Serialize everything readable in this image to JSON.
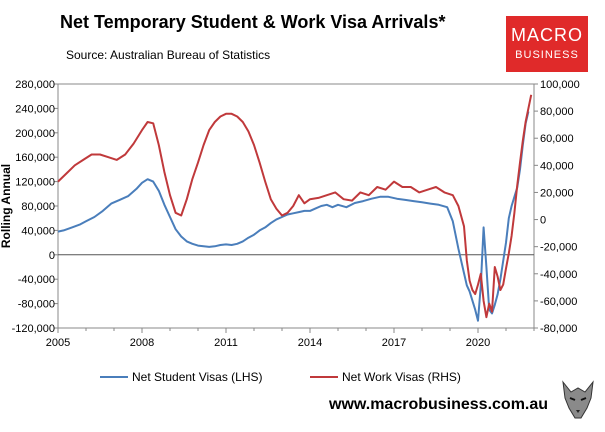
{
  "header": {
    "title": "Net Temporary Student & Work Visa Arrivals*",
    "source": "Source: Australian Bureau of Statistics"
  },
  "logo": {
    "line1": "MACRO",
    "line2": "BUSINESS"
  },
  "footer": {
    "website": "www.macrobusiness.com.au"
  },
  "colors": {
    "student": "#4a7ebb",
    "work": "#c0393b",
    "logo_bg": "#e02a2a"
  },
  "chart_data": {
    "type": "line",
    "title": "Net Temporary Student & Work Visa Arrivals*",
    "ylabel": "Rolling Annual",
    "x_tick_labels": [
      "2005",
      "2008",
      "2011",
      "2014",
      "2017",
      "2020"
    ],
    "left_axis": {
      "ylim": [
        -120000,
        280000
      ],
      "tick_labels": [
        "280,000",
        "240,000",
        "200,000",
        "160,000",
        "120,000",
        "80,000",
        "40,000",
        "0",
        "-40,000",
        "-80,000",
        "-120,000"
      ]
    },
    "right_axis": {
      "ylim": [
        -80000,
        100000
      ],
      "tick_labels": [
        "100,000",
        "80,000",
        "60,000",
        "40,000",
        "20,000",
        "0",
        "-20,000",
        "-40,000",
        "-60,000",
        "-80,000"
      ]
    },
    "legend_position": "bottom",
    "grid": false,
    "series": [
      {
        "name": "Net Student Visas (LHS)",
        "axis": "left",
        "x": [
          2005.0,
          2005.2,
          2005.5,
          2005.8,
          2006.0,
          2006.3,
          2006.6,
          2006.9,
          2007.2,
          2007.5,
          2007.8,
          2008.0,
          2008.2,
          2008.4,
          2008.6,
          2008.8,
          2009.0,
          2009.2,
          2009.4,
          2009.6,
          2009.8,
          2010.0,
          2010.2,
          2010.4,
          2010.6,
          2010.8,
          2011.0,
          2011.2,
          2011.4,
          2011.6,
          2011.8,
          2012.0,
          2012.2,
          2012.4,
          2012.6,
          2012.8,
          2013.0,
          2013.2,
          2013.4,
          2013.6,
          2013.8,
          2014.0,
          2014.2,
          2014.4,
          2014.6,
          2014.8,
          2015.0,
          2015.3,
          2015.6,
          2015.9,
          2016.2,
          2016.5,
          2016.8,
          2017.1,
          2017.4,
          2017.7,
          2018.0,
          2018.3,
          2018.6,
          2018.9,
          2019.1,
          2019.3,
          2019.5,
          2019.6,
          2019.7,
          2019.8,
          2019.9,
          2020.0,
          2020.1,
          2020.2,
          2020.3,
          2020.4,
          2020.5,
          2020.6,
          2020.7,
          2020.8,
          2020.9,
          2021.0,
          2021.1,
          2021.2,
          2021.3,
          2021.4,
          2021.5,
          2021.6,
          2021.7,
          2021.8
        ],
        "values": [
          38000,
          40000,
          45000,
          50000,
          55000,
          62000,
          72000,
          84000,
          90000,
          96000,
          108000,
          118000,
          124000,
          120000,
          105000,
          82000,
          62000,
          42000,
          30000,
          22000,
          18000,
          15000,
          14000,
          13000,
          14000,
          16000,
          17000,
          16000,
          18000,
          22000,
          28000,
          33000,
          40000,
          45000,
          52000,
          58000,
          62000,
          66000,
          68000,
          70000,
          72000,
          72000,
          76000,
          80000,
          82000,
          78000,
          82000,
          78000,
          85000,
          88000,
          92000,
          95000,
          95000,
          92000,
          90000,
          88000,
          86000,
          84000,
          82000,
          78000,
          55000,
          10000,
          -30000,
          -50000,
          -60000,
          -75000,
          -90000,
          -108000,
          -50000,
          45000,
          -20000,
          -90000,
          -96000,
          -82000,
          -65000,
          -40000,
          -10000,
          20000,
          60000,
          80000,
          95000,
          110000,
          140000,
          180000,
          215000,
          235000
        ]
      },
      {
        "name": "Net Work Visas (RHS)",
        "axis": "right",
        "x": [
          2005.0,
          2005.3,
          2005.6,
          2005.9,
          2006.2,
          2006.5,
          2006.8,
          2007.1,
          2007.4,
          2007.7,
          2008.0,
          2008.2,
          2008.4,
          2008.6,
          2008.8,
          2009.0,
          2009.2,
          2009.4,
          2009.6,
          2009.8,
          2010.0,
          2010.2,
          2010.4,
          2010.6,
          2010.8,
          2011.0,
          2011.2,
          2011.4,
          2011.6,
          2011.8,
          2012.0,
          2012.2,
          2012.4,
          2012.6,
          2012.8,
          2013.0,
          2013.2,
          2013.4,
          2013.6,
          2013.8,
          2014.0,
          2014.3,
          2014.6,
          2014.9,
          2015.2,
          2015.5,
          2015.8,
          2016.1,
          2016.4,
          2016.7,
          2017.0,
          2017.3,
          2017.6,
          2017.9,
          2018.2,
          2018.5,
          2018.8,
          2019.1,
          2019.3,
          2019.5,
          2019.6,
          2019.7,
          2019.8,
          2019.9,
          2020.0,
          2020.1,
          2020.2,
          2020.3,
          2020.4,
          2020.5,
          2020.6,
          2020.7,
          2020.8,
          2020.9,
          2021.0,
          2021.1,
          2021.2,
          2021.3,
          2021.4,
          2021.5,
          2021.6,
          2021.7,
          2021.8,
          2021.9
        ],
        "values": [
          28000,
          34000,
          40000,
          44000,
          48000,
          48000,
          46000,
          44000,
          48000,
          56000,
          66000,
          72000,
          71000,
          55000,
          35000,
          18000,
          5000,
          3000,
          15000,
          30000,
          42000,
          55000,
          66000,
          72000,
          76000,
          78000,
          78000,
          76000,
          72000,
          65000,
          55000,
          42000,
          28000,
          15000,
          8000,
          3000,
          5000,
          10000,
          18000,
          12000,
          15000,
          16000,
          18000,
          20000,
          15000,
          14000,
          20000,
          18000,
          24000,
          22000,
          28000,
          24000,
          24000,
          20000,
          22000,
          24000,
          20000,
          18000,
          10000,
          -5000,
          -30000,
          -45000,
          -52000,
          -55000,
          -48000,
          -40000,
          -60000,
          -72000,
          -62000,
          -68000,
          -35000,
          -42000,
          -52000,
          -48000,
          -36000,
          -25000,
          -12000,
          5000,
          25000,
          42000,
          58000,
          72000,
          82000,
          92000
        ]
      }
    ]
  }
}
